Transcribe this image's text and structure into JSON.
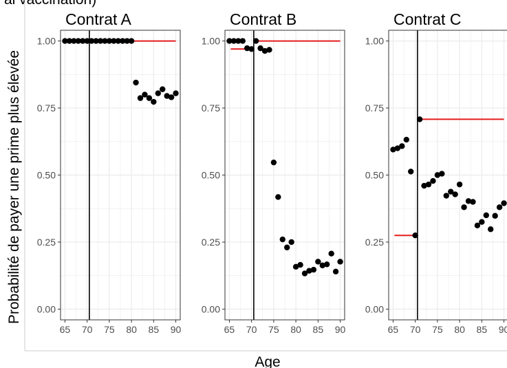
{
  "header_fragment": "ai vaccination)",
  "chart_data": {
    "type": "scatter",
    "layout": "facets-1x3",
    "xlabel": "Age",
    "ylabel": "Probabilité de payer une prime plus élevée",
    "xlim": [
      64,
      91
    ],
    "ylim": [
      -0.04,
      1.04
    ],
    "xticks": [
      65,
      70,
      75,
      80,
      85,
      90
    ],
    "yticks": [
      0.0,
      0.25,
      0.5,
      0.75,
      1.0
    ],
    "ytick_labels": [
      "0.00",
      "0.25",
      "0.50",
      "0.75",
      "1.00"
    ],
    "grid": true,
    "vline_x": 70.5,
    "colors": {
      "points": "#000000",
      "fit": "#e41a1c",
      "vline": "#000000",
      "grid": "#ebebeb",
      "border": "#333333"
    },
    "facets": [
      {
        "title": "Contrat A",
        "points": [
          {
            "x": 65,
            "y": 1.0
          },
          {
            "x": 66,
            "y": 1.0
          },
          {
            "x": 67,
            "y": 1.0
          },
          {
            "x": 68,
            "y": 1.0
          },
          {
            "x": 69,
            "y": 1.0
          },
          {
            "x": 70,
            "y": 1.0
          },
          {
            "x": 71,
            "y": 1.0
          },
          {
            "x": 72,
            "y": 1.0
          },
          {
            "x": 73,
            "y": 1.0
          },
          {
            "x": 74,
            "y": 1.0
          },
          {
            "x": 75,
            "y": 1.0
          },
          {
            "x": 76,
            "y": 1.0
          },
          {
            "x": 77,
            "y": 1.0
          },
          {
            "x": 78,
            "y": 1.0
          },
          {
            "x": 79,
            "y": 1.0
          },
          {
            "x": 80,
            "y": 1.0
          },
          {
            "x": 81,
            "y": 0.845
          },
          {
            "x": 82,
            "y": 0.787
          },
          {
            "x": 83,
            "y": 0.8
          },
          {
            "x": 84,
            "y": 0.787
          },
          {
            "x": 85,
            "y": 0.773
          },
          {
            "x": 86,
            "y": 0.805
          },
          {
            "x": 87,
            "y": 0.82
          },
          {
            "x": 88,
            "y": 0.795
          },
          {
            "x": 89,
            "y": 0.79
          },
          {
            "x": 90,
            "y": 0.805
          }
        ],
        "fits": [
          {
            "x": [
              65,
              70.5
            ],
            "y": [
              1.0,
              1.0
            ]
          },
          {
            "x": [
              70.5,
              90
            ],
            "y": [
              1.0,
              1.0
            ]
          }
        ]
      },
      {
        "title": "Contrat B",
        "points": [
          {
            "x": 65,
            "y": 1.0
          },
          {
            "x": 66,
            "y": 1.0
          },
          {
            "x": 67,
            "y": 1.0
          },
          {
            "x": 68,
            "y": 1.0
          },
          {
            "x": 69,
            "y": 0.973
          },
          {
            "x": 70,
            "y": 0.97
          },
          {
            "x": 71,
            "y": 1.0
          },
          {
            "x": 72,
            "y": 0.973
          },
          {
            "x": 73,
            "y": 0.963
          },
          {
            "x": 74,
            "y": 0.967
          },
          {
            "x": 75,
            "y": 0.547
          },
          {
            "x": 76,
            "y": 0.418
          },
          {
            "x": 77,
            "y": 0.26
          },
          {
            "x": 78,
            "y": 0.23
          },
          {
            "x": 79,
            "y": 0.25
          },
          {
            "x": 80,
            "y": 0.158
          },
          {
            "x": 81,
            "y": 0.165
          },
          {
            "x": 82,
            "y": 0.133
          },
          {
            "x": 83,
            "y": 0.143
          },
          {
            "x": 84,
            "y": 0.147
          },
          {
            "x": 85,
            "y": 0.177
          },
          {
            "x": 86,
            "y": 0.163
          },
          {
            "x": 87,
            "y": 0.167
          },
          {
            "x": 88,
            "y": 0.207
          },
          {
            "x": 89,
            "y": 0.14
          },
          {
            "x": 90,
            "y": 0.177
          }
        ],
        "fits": [
          {
            "x": [
              65.3,
              70.5
            ],
            "y": [
              0.97,
              0.97
            ]
          },
          {
            "x": [
              70.5,
              90
            ],
            "y": [
              1.0,
              1.0
            ]
          }
        ]
      },
      {
        "title": "Contrat C",
        "points": [
          {
            "x": 65,
            "y": 0.595
          },
          {
            "x": 66,
            "y": 0.6
          },
          {
            "x": 67,
            "y": 0.608
          },
          {
            "x": 68,
            "y": 0.632
          },
          {
            "x": 69,
            "y": 0.513
          },
          {
            "x": 70,
            "y": 0.275
          },
          {
            "x": 71,
            "y": 0.708
          },
          {
            "x": 72,
            "y": 0.46
          },
          {
            "x": 73,
            "y": 0.465
          },
          {
            "x": 74,
            "y": 0.478
          },
          {
            "x": 75,
            "y": 0.5
          },
          {
            "x": 76,
            "y": 0.505
          },
          {
            "x": 77,
            "y": 0.423
          },
          {
            "x": 78,
            "y": 0.438
          },
          {
            "x": 79,
            "y": 0.428
          },
          {
            "x": 80,
            "y": 0.465
          },
          {
            "x": 81,
            "y": 0.38
          },
          {
            "x": 82,
            "y": 0.403
          },
          {
            "x": 83,
            "y": 0.4
          },
          {
            "x": 84,
            "y": 0.312
          },
          {
            "x": 85,
            "y": 0.325
          },
          {
            "x": 86,
            "y": 0.35
          },
          {
            "x": 87,
            "y": 0.298
          },
          {
            "x": 88,
            "y": 0.348
          },
          {
            "x": 89,
            "y": 0.38
          },
          {
            "x": 90,
            "y": 0.395
          }
        ],
        "fits": [
          {
            "x": [
              65.3,
              70.5
            ],
            "y": [
              0.275,
              0.275
            ]
          },
          {
            "x": [
              70.5,
              90
            ],
            "y": [
              0.708,
              0.708
            ]
          }
        ]
      }
    ]
  }
}
